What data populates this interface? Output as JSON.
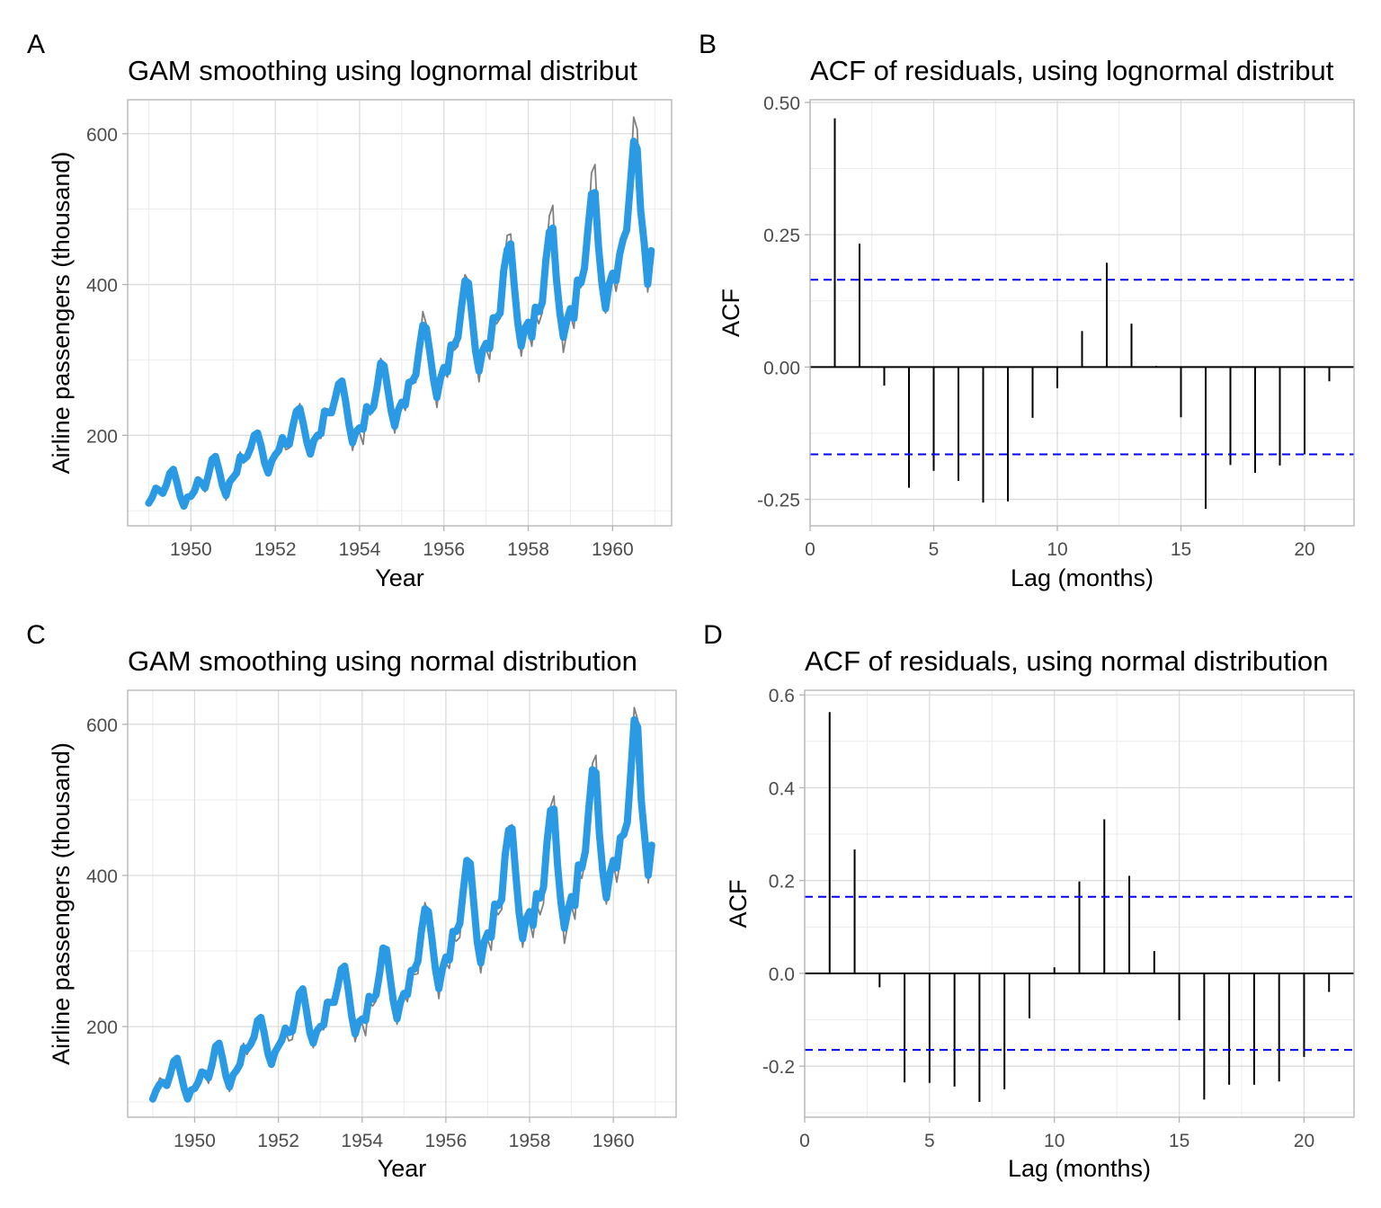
{
  "colors": {
    "observed": "#808080",
    "fitted": "#2a9ae4",
    "acf_bar": "#000000",
    "ci_line": "#0000ff"
  },
  "chart_data": [
    {
      "panel": "A",
      "type": "line",
      "title": "GAM smoothing using lognormal distribut",
      "xlabel": "Year",
      "ylabel": "Airline passengers (thousand)",
      "xlim": [
        1948.5,
        1961.4
      ],
      "ylim": [
        80,
        645
      ],
      "xticks": [
        1950,
        1952,
        1954,
        1956,
        1958,
        1960
      ],
      "yticks": [
        200,
        400,
        600
      ],
      "grid": true,
      "series": [
        {
          "role": "observed",
          "x_start": 1949.0,
          "x_step": 0.08333333,
          "values": [
            112,
            118,
            132,
            129,
            121,
            135,
            148,
            148,
            136,
            119,
            104,
            118,
            115,
            126,
            141,
            135,
            125,
            149,
            170,
            170,
            158,
            133,
            114,
            140,
            145,
            150,
            178,
            163,
            172,
            178,
            199,
            199,
            184,
            162,
            146,
            166,
            171,
            180,
            193,
            181,
            183,
            218,
            230,
            242,
            209,
            191,
            172,
            194,
            196,
            196,
            236,
            235,
            229,
            243,
            264,
            272,
            237,
            211,
            180,
            201,
            204,
            188,
            235,
            227,
            234,
            264,
            302,
            293,
            259,
            229,
            203,
            229,
            242,
            233,
            267,
            269,
            270,
            315,
            364,
            347,
            312,
            274,
            237,
            278,
            284,
            277,
            317,
            313,
            318,
            374,
            413,
            405,
            355,
            306,
            271,
            306,
            315,
            301,
            356,
            348,
            355,
            422,
            465,
            467,
            404,
            347,
            305,
            336,
            340,
            318,
            362,
            348,
            363,
            435,
            491,
            505,
            404,
            359,
            310,
            337,
            360,
            342,
            406,
            396,
            420,
            472,
            548,
            559,
            463,
            407,
            362,
            405,
            417,
            391,
            419,
            461,
            472,
            535,
            622,
            606,
            508,
            461,
            390,
            432
          ]
        },
        {
          "role": "fitted",
          "x_start": 1949.0,
          "x_step": 0.08333333,
          "values": [
            110,
            118,
            130,
            127,
            123,
            134,
            150,
            155,
            138,
            118,
            106,
            118,
            119,
            126,
            141,
            137,
            130,
            148,
            168,
            172,
            154,
            133,
            120,
            138,
            144,
            150,
            172,
            168,
            172,
            183,
            200,
            203,
            186,
            163,
            150,
            166,
            174,
            180,
            197,
            188,
            188,
            212,
            232,
            236,
            215,
            191,
            175,
            193,
            200,
            202,
            232,
            230,
            230,
            248,
            268,
            272,
            246,
            214,
            190,
            205,
            210,
            208,
            238,
            232,
            238,
            264,
            296,
            292,
            262,
            232,
            212,
            233,
            244,
            240,
            270,
            272,
            280,
            316,
            346,
            342,
            310,
            275,
            250,
            275,
            290,
            284,
            320,
            320,
            330,
            370,
            405,
            402,
            358,
            312,
            285,
            312,
            322,
            315,
            356,
            356,
            362,
            418,
            446,
            454,
            400,
            350,
            318,
            342,
            350,
            330,
            370,
            364,
            376,
            432,
            470,
            475,
            408,
            362,
            330,
            352,
            368,
            355,
            406,
            402,
            422,
            474,
            520,
            522,
            450,
            400,
            368,
            400,
            415,
            405,
            440,
            460,
            472,
            530,
            590,
            580,
            498,
            455,
            400,
            445
          ]
        }
      ]
    },
    {
      "panel": "B",
      "type": "bar",
      "title": "ACF of residuals, using lognormal distribut",
      "xlabel": "Lag (months)",
      "ylabel": "ACF",
      "xlim": [
        0,
        22
      ],
      "ylim": [
        -0.3,
        0.505
      ],
      "xticks": [
        0,
        5,
        10,
        15,
        20
      ],
      "yticks": [
        0.5,
        0.25,
        0.0,
        -0.25
      ],
      "ytick_labels": [
        "0.50",
        "0.25",
        "0.00",
        "-0.25"
      ],
      "grid": true,
      "lags": [
        1,
        2,
        3,
        4,
        5,
        6,
        7,
        8,
        9,
        10,
        11,
        12,
        13,
        14,
        15,
        16,
        17,
        18,
        19,
        20,
        21
      ],
      "values": [
        0.47,
        0.233,
        -0.035,
        -0.228,
        -0.196,
        -0.215,
        -0.256,
        -0.254,
        -0.096,
        -0.04,
        0.068,
        0.197,
        0.082,
        0.002,
        -0.095,
        -0.268,
        -0.185,
        -0.2,
        -0.186,
        -0.165,
        -0.027
      ],
      "confidence_band": 0.165
    },
    {
      "panel": "C",
      "type": "line",
      "title": "GAM smoothing using normal distribution",
      "xlabel": "Year",
      "ylabel": "Airline passengers (thousand)",
      "xlim": [
        1948.4,
        1961.5
      ],
      "ylim": [
        80,
        645
      ],
      "xticks": [
        1950,
        1952,
        1954,
        1956,
        1958,
        1960
      ],
      "yticks": [
        200,
        400,
        600
      ],
      "grid": true,
      "series": [
        {
          "role": "observed",
          "x_start": 1949.0,
          "x_step": 0.08333333,
          "values": [
            112,
            118,
            132,
            129,
            121,
            135,
            148,
            148,
            136,
            119,
            104,
            118,
            115,
            126,
            141,
            135,
            125,
            149,
            170,
            170,
            158,
            133,
            114,
            140,
            145,
            150,
            178,
            163,
            172,
            178,
            199,
            199,
            184,
            162,
            146,
            166,
            171,
            180,
            193,
            181,
            183,
            218,
            230,
            242,
            209,
            191,
            172,
            194,
            196,
            196,
            236,
            235,
            229,
            243,
            264,
            272,
            237,
            211,
            180,
            201,
            204,
            188,
            235,
            227,
            234,
            264,
            302,
            293,
            259,
            229,
            203,
            229,
            242,
            233,
            267,
            269,
            270,
            315,
            364,
            347,
            312,
            274,
            237,
            278,
            284,
            277,
            317,
            313,
            318,
            374,
            413,
            405,
            355,
            306,
            271,
            306,
            315,
            301,
            356,
            348,
            355,
            422,
            465,
            467,
            404,
            347,
            305,
            336,
            340,
            318,
            362,
            348,
            363,
            435,
            491,
            505,
            404,
            359,
            310,
            337,
            360,
            342,
            406,
            396,
            420,
            472,
            548,
            559,
            463,
            407,
            362,
            405,
            417,
            391,
            419,
            461,
            472,
            535,
            622,
            606,
            508,
            461,
            390,
            432
          ]
        },
        {
          "role": "fitted",
          "x_start": 1949.0,
          "x_step": 0.08333333,
          "values": [
            104,
            116,
            124,
            126,
            122,
            136,
            154,
            158,
            138,
            118,
            104,
            116,
            118,
            126,
            140,
            138,
            132,
            150,
            174,
            178,
            158,
            134,
            120,
            136,
            142,
            150,
            172,
            170,
            176,
            186,
            208,
            212,
            190,
            164,
            150,
            166,
            174,
            182,
            198,
            192,
            194,
            218,
            244,
            250,
            222,
            192,
            178,
            194,
            200,
            202,
            232,
            232,
            232,
            252,
            276,
            280,
            250,
            214,
            190,
            206,
            210,
            208,
            240,
            236,
            242,
            270,
            304,
            302,
            266,
            232,
            210,
            232,
            244,
            242,
            274,
            276,
            286,
            326,
            356,
            352,
            316,
            276,
            250,
            276,
            292,
            288,
            326,
            326,
            336,
            380,
            420,
            416,
            364,
            312,
            284,
            312,
            324,
            318,
            362,
            360,
            368,
            428,
            460,
            462,
            404,
            350,
            316,
            342,
            352,
            334,
            376,
            370,
            384,
            444,
            486,
            488,
            414,
            364,
            330,
            354,
            372,
            360,
            414,
            410,
            432,
            490,
            540,
            536,
            456,
            404,
            370,
            402,
            420,
            410,
            450,
            454,
            470,
            536,
            606,
            596,
            500,
            450,
            400,
            440
          ]
        }
      ]
    },
    {
      "panel": "D",
      "type": "bar",
      "title": "ACF of residuals, using normal distribution",
      "xlabel": "Lag (months)",
      "ylabel": "ACF",
      "xlim": [
        0,
        22
      ],
      "ylim": [
        -0.31,
        0.61
      ],
      "xticks": [
        0,
        5,
        10,
        15,
        20
      ],
      "yticks": [
        0.6,
        0.4,
        0.2,
        0.0,
        -0.2
      ],
      "ytick_labels": [
        "0.6",
        "0.4",
        "0.2",
        "0.0",
        "-0.2"
      ],
      "grid": true,
      "lags": [
        1,
        2,
        3,
        4,
        5,
        6,
        7,
        8,
        9,
        10,
        11,
        12,
        13,
        14,
        15,
        16,
        17,
        18,
        19,
        20,
        21
      ],
      "values": [
        0.563,
        0.267,
        -0.03,
        -0.235,
        -0.236,
        -0.244,
        -0.277,
        -0.25,
        -0.097,
        0.013,
        0.198,
        0.332,
        0.21,
        0.048,
        -0.101,
        -0.272,
        -0.24,
        -0.24,
        -0.233,
        -0.18,
        -0.04
      ],
      "confidence_band": 0.165
    }
  ]
}
